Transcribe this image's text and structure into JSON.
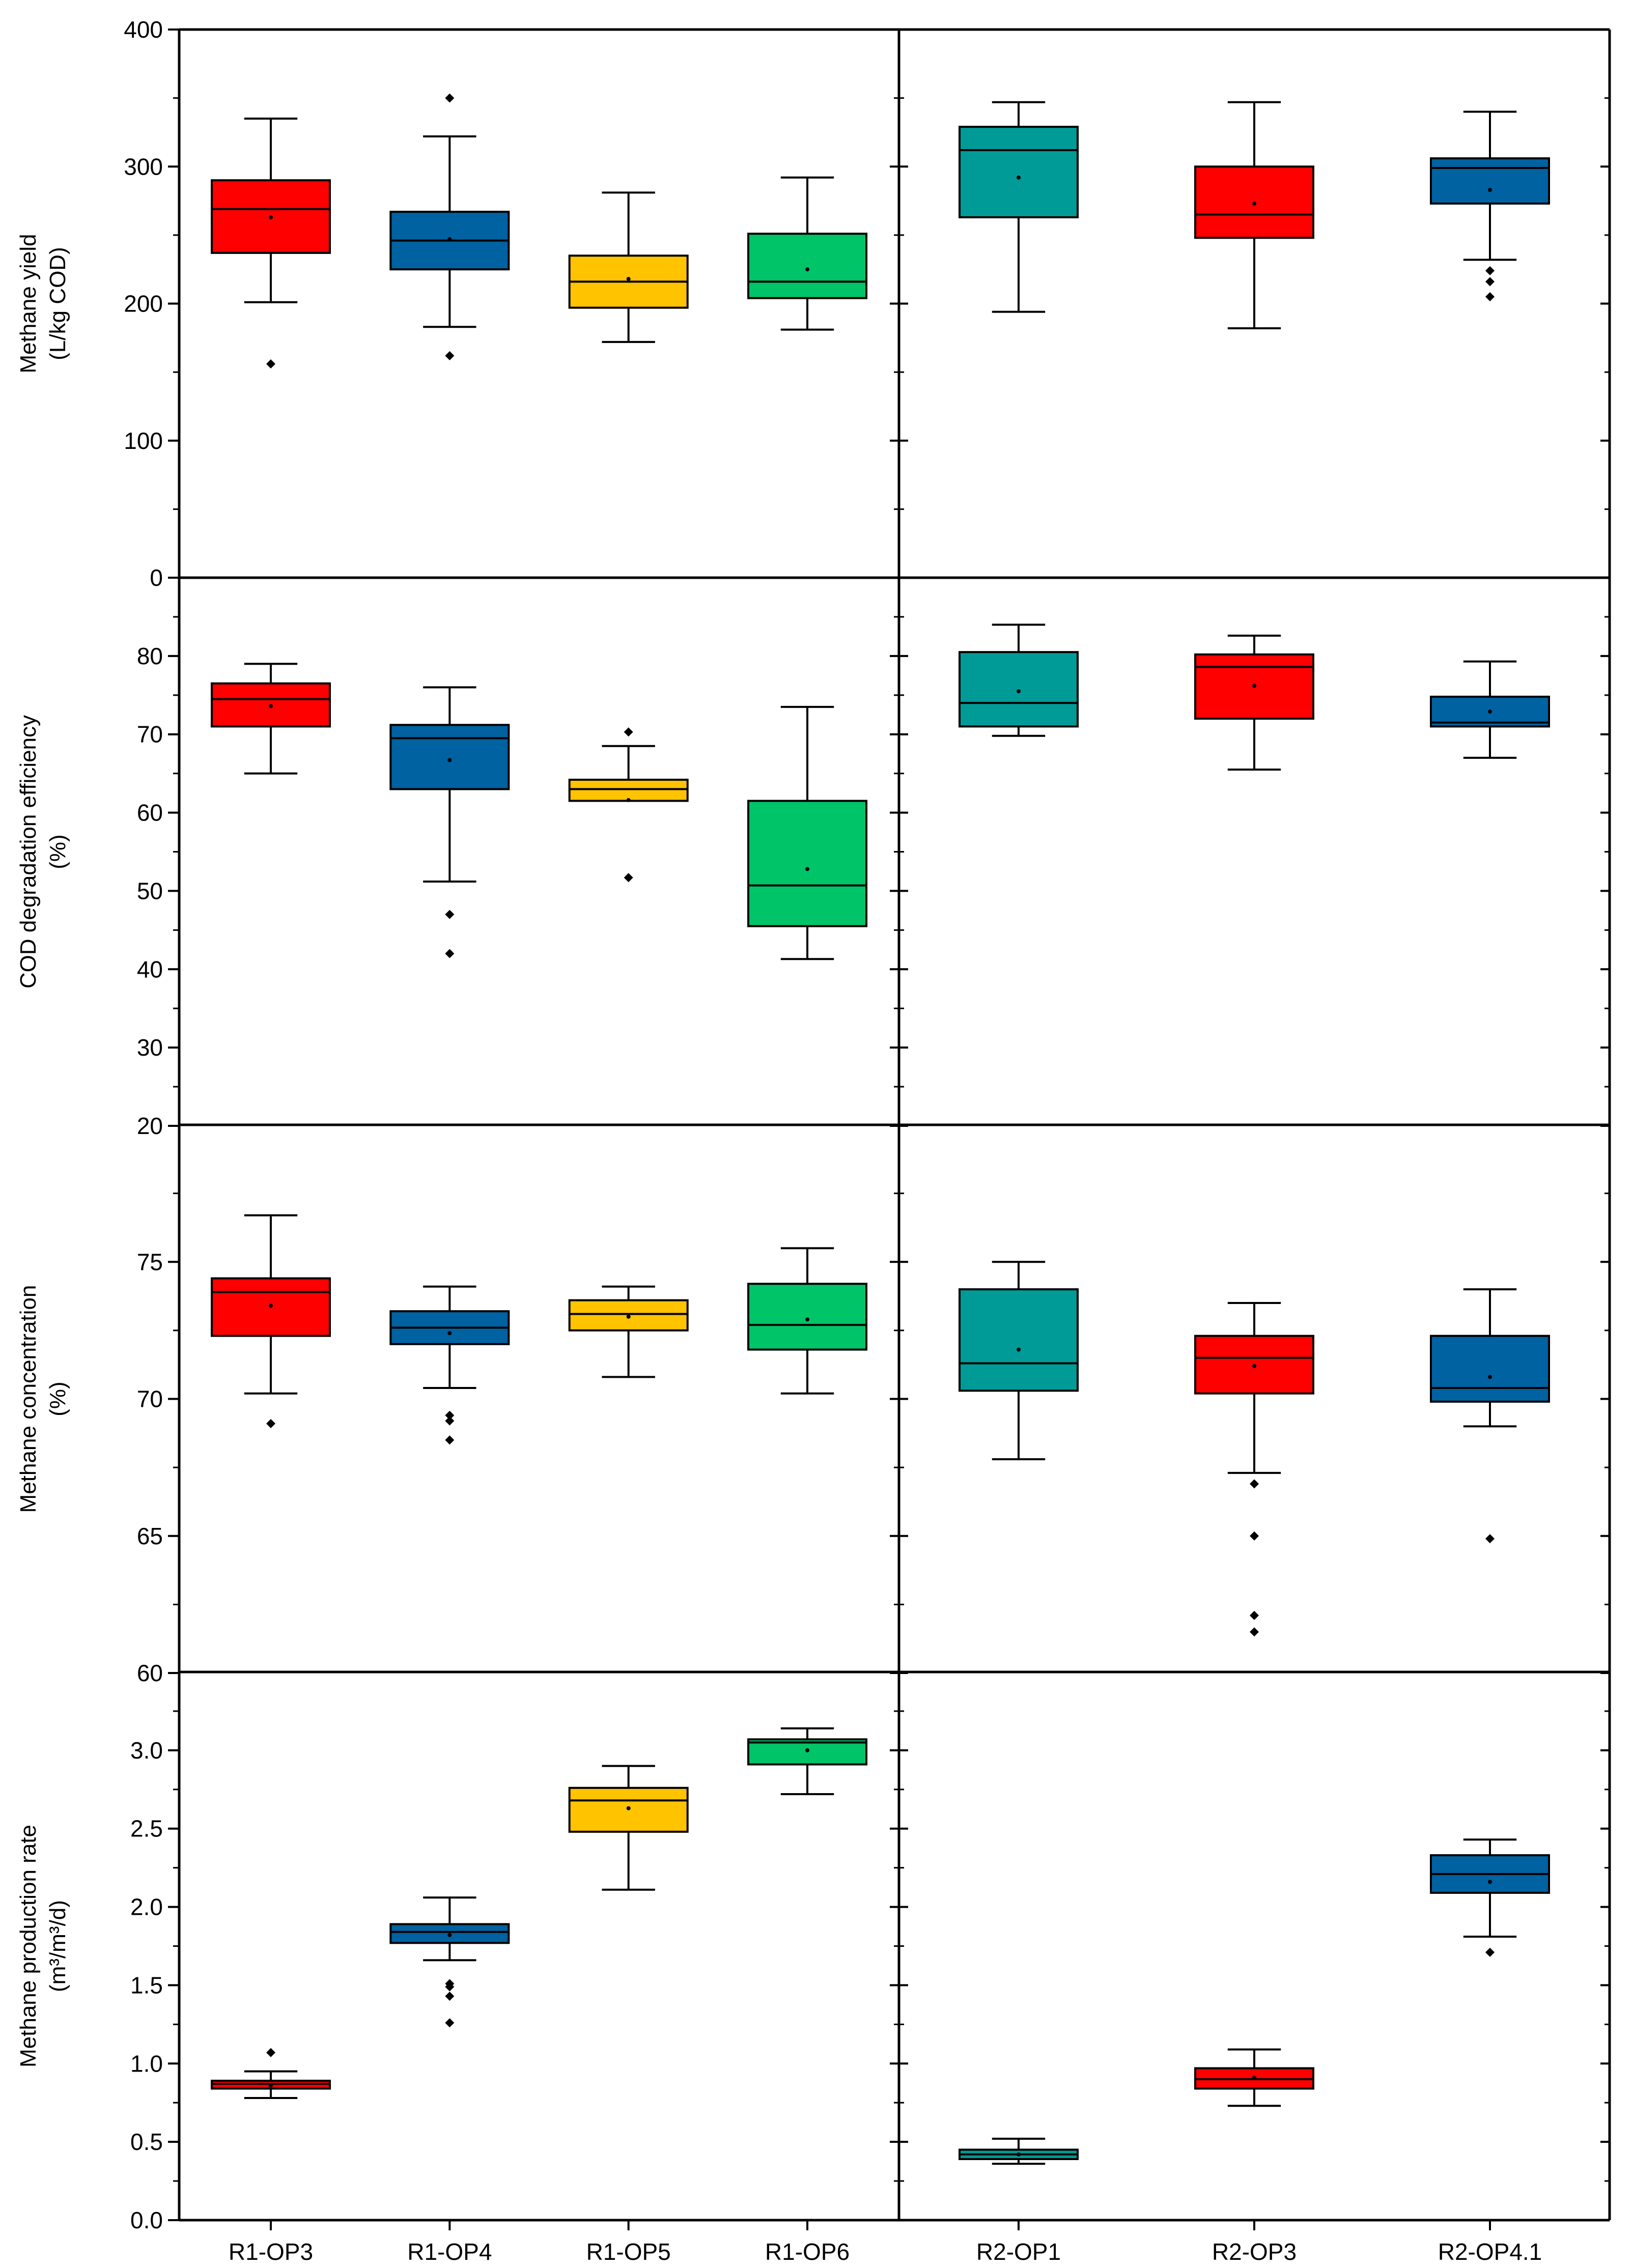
{
  "chart_data": {
    "type": "box",
    "layout": "4 rows x 2 columns, shared x-axis per column",
    "columns": [
      {
        "name": "R1",
        "categories": [
          "R1-OP3",
          "R1-OP4",
          "R1-OP5",
          "R1-OP6"
        ]
      },
      {
        "name": "R2",
        "categories": [
          "R2-OP1",
          "R2-OP3",
          "R2-OP4.1"
        ]
      }
    ],
    "colors": {
      "R1-OP3": "#ff0000",
      "R1-OP4": "#0062a1",
      "R1-OP5": "#ffc300",
      "R1-OP6": "#00c468",
      "R2-OP1": "#009b97",
      "R2-OP3": "#ff0000",
      "R2-OP4.1": "#0062a1"
    },
    "panels": [
      {
        "id": "methane-yield",
        "ylabel": [
          "Methane yield",
          "(L/kg COD)"
        ],
        "ylim": [
          0,
          400
        ],
        "yticks": [
          0,
          100,
          200,
          300,
          400
        ],
        "ytick_labels": [
          "0",
          "100",
          "200",
          "300",
          "400"
        ],
        "boxes": {
          "R1-OP3": {
            "q1": 237,
            "median": 269,
            "q3": 290,
            "whisker_low": 201,
            "whisker_high": 335,
            "mean": 263,
            "outliers": [
              156
            ]
          },
          "R1-OP4": {
            "q1": 225,
            "median": 246,
            "q3": 267,
            "whisker_low": 183,
            "whisker_high": 322,
            "mean": 247,
            "outliers": [
              162,
              350
            ]
          },
          "R1-OP5": {
            "q1": 197,
            "median": 216,
            "q3": 235,
            "whisker_low": 172,
            "whisker_high": 281,
            "mean": 218,
            "outliers": []
          },
          "R1-OP6": {
            "q1": 204,
            "median": 216,
            "q3": 251,
            "whisker_low": 181,
            "whisker_high": 292,
            "mean": 225,
            "outliers": []
          },
          "R2-OP1": {
            "q1": 263,
            "median": 312,
            "q3": 329,
            "whisker_low": 194,
            "whisker_high": 347,
            "mean": 292,
            "outliers": []
          },
          "R2-OP3": {
            "q1": 248,
            "median": 265,
            "q3": 300,
            "whisker_low": 182,
            "whisker_high": 347,
            "mean": 273,
            "outliers": []
          },
          "R2-OP4.1": {
            "q1": 273,
            "median": 299,
            "q3": 306,
            "whisker_low": 232,
            "whisker_high": 340,
            "mean": 283,
            "outliers": [
              205,
              216,
              224
            ]
          }
        }
      },
      {
        "id": "cod-degradation",
        "ylabel": [
          "COD degradation efficiency",
          "(%)"
        ],
        "ylim": [
          20,
          90
        ],
        "yticks": [
          20,
          30,
          40,
          50,
          60,
          70,
          80
        ],
        "ytick_labels": [
          "20",
          "30",
          "40",
          "50",
          "60",
          "70",
          "80"
        ],
        "boxes": {
          "R1-OP3": {
            "q1": 71,
            "median": 74.5,
            "q3": 76.5,
            "whisker_low": 65,
            "whisker_high": 79,
            "mean": 73.6,
            "outliers": []
          },
          "R1-OP4": {
            "q1": 63,
            "median": 69.5,
            "q3": 71.2,
            "whisker_low": 51.2,
            "whisker_high": 76,
            "mean": 66.7,
            "outliers": [
              47,
              42
            ]
          },
          "R1-OP5": {
            "q1": 61.5,
            "median": 63,
            "q3": 64.2,
            "whisker_low": 61.5,
            "whisker_high": 68.5,
            "mean": 61.6,
            "outliers": [
              70.3,
              51.7
            ]
          },
          "R1-OP6": {
            "q1": 45.5,
            "median": 50.7,
            "q3": 61.5,
            "whisker_low": 41.3,
            "whisker_high": 73.5,
            "mean": 52.8,
            "outliers": []
          },
          "R2-OP1": {
            "q1": 71,
            "median": 74,
            "q3": 80.5,
            "whisker_low": 69.8,
            "whisker_high": 84,
            "mean": 75.5,
            "outliers": []
          },
          "R2-OP3": {
            "q1": 72,
            "median": 78.6,
            "q3": 80.2,
            "whisker_low": 65.5,
            "whisker_high": 82.6,
            "mean": 76.2,
            "outliers": []
          },
          "R2-OP4.1": {
            "q1": 71,
            "median": 71.5,
            "q3": 74.8,
            "whisker_low": 67,
            "whisker_high": 79.3,
            "mean": 72.9,
            "outliers": []
          }
        }
      },
      {
        "id": "methane-concentration",
        "ylabel": [
          "Methane concentration",
          "(%)"
        ],
        "ylim": [
          60,
          80
        ],
        "yticks": [
          60,
          65,
          70,
          75
        ],
        "ytick_labels": [
          "60",
          "65",
          "70",
          "75"
        ],
        "boxes": {
          "R1-OP3": {
            "q1": 72.3,
            "median": 73.9,
            "q3": 74.4,
            "whisker_low": 70.2,
            "whisker_high": 76.7,
            "mean": 73.4,
            "outliers": [
              69.1
            ]
          },
          "R1-OP4": {
            "q1": 72,
            "median": 72.6,
            "q3": 73.2,
            "whisker_low": 70.4,
            "whisker_high": 74.1,
            "mean": 72.4,
            "outliers": [
              69.4,
              69.2,
              68.5
            ]
          },
          "R1-OP5": {
            "q1": 72.5,
            "median": 73.1,
            "q3": 73.6,
            "whisker_low": 70.8,
            "whisker_high": 74.1,
            "mean": 73,
            "outliers": []
          },
          "R1-OP6": {
            "q1": 71.8,
            "median": 72.7,
            "q3": 74.2,
            "whisker_low": 70.2,
            "whisker_high": 75.5,
            "mean": 72.9,
            "outliers": []
          },
          "R2-OP1": {
            "q1": 70.3,
            "median": 71.3,
            "q3": 74,
            "whisker_low": 67.8,
            "whisker_high": 75,
            "mean": 71.8,
            "outliers": []
          },
          "R2-OP3": {
            "q1": 70.2,
            "median": 71.5,
            "q3": 72.3,
            "whisker_low": 67.3,
            "whisker_high": 73.5,
            "mean": 71.2,
            "outliers": [
              66.9,
              65,
              62.1,
              61.5
            ]
          },
          "R2-OP4.1": {
            "q1": 69.9,
            "median": 70.4,
            "q3": 72.3,
            "whisker_low": 69,
            "whisker_high": 74,
            "mean": 70.8,
            "outliers": [
              64.9
            ]
          }
        }
      },
      {
        "id": "methane-production-rate",
        "ylabel": [
          "Methane production rate",
          "(m³/m³/d)"
        ],
        "ylim": [
          0,
          3.5
        ],
        "yticks": [
          0,
          0.5,
          1,
          1.5,
          2,
          2.5,
          3
        ],
        "ytick_labels": [
          "0.0",
          "0.5",
          "1.0",
          "1.5",
          "2.0",
          "2.5",
          "3.0"
        ],
        "boxes": {
          "R1-OP3": {
            "q1": 0.84,
            "median": 0.87,
            "q3": 0.89,
            "whisker_low": 0.78,
            "whisker_high": 0.95,
            "mean": 0.86,
            "outliers": [
              1.07
            ]
          },
          "R1-OP4": {
            "q1": 1.77,
            "median": 1.84,
            "q3": 1.89,
            "whisker_low": 1.66,
            "whisker_high": 2.06,
            "mean": 1.82,
            "outliers": [
              1.51,
              1.49,
              1.43,
              1.26
            ]
          },
          "R1-OP5": {
            "q1": 2.48,
            "median": 2.68,
            "q3": 2.76,
            "whisker_low": 2.11,
            "whisker_high": 2.9,
            "mean": 2.63,
            "outliers": []
          },
          "R1-OP6": {
            "q1": 2.91,
            "median": 3.05,
            "q3": 3.07,
            "whisker_low": 2.72,
            "whisker_high": 3.14,
            "mean": 3,
            "outliers": []
          },
          "R2-OP1": {
            "q1": 0.39,
            "median": 0.42,
            "q3": 0.45,
            "whisker_low": 0.36,
            "whisker_high": 0.52,
            "mean": 0.42,
            "outliers": []
          },
          "R2-OP3": {
            "q1": 0.84,
            "median": 0.9,
            "q3": 0.97,
            "whisker_low": 0.73,
            "whisker_high": 1.09,
            "mean": 0.91,
            "outliers": []
          },
          "R2-OP4.1": {
            "q1": 2.09,
            "median": 2.21,
            "q3": 2.33,
            "whisker_low": 1.81,
            "whisker_high": 2.43,
            "mean": 2.16,
            "outliers": [
              1.71
            ]
          }
        }
      }
    ]
  }
}
